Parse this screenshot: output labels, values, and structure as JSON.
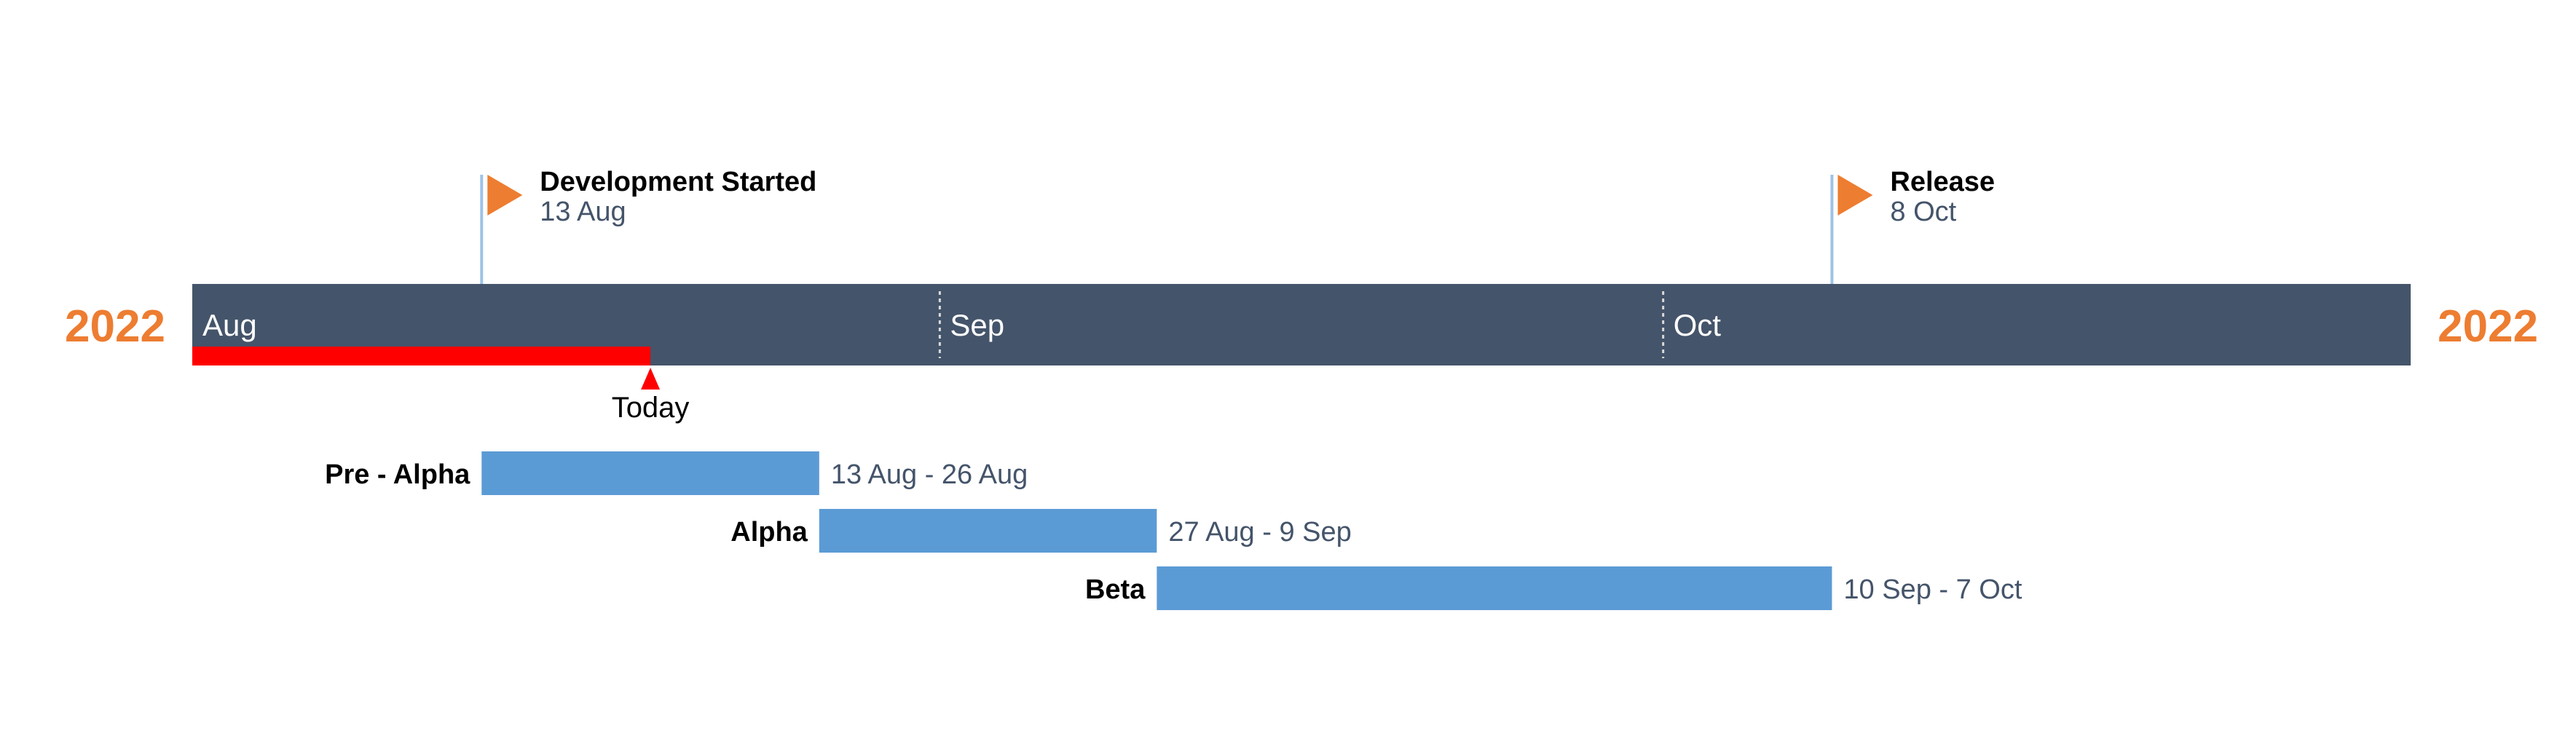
{
  "timeline": {
    "year_left": "2022",
    "year_right": "2022",
    "start_date": "2022-08-01",
    "end_date": "2022-10-31",
    "months": [
      {
        "label": "Aug",
        "start": "2022-08-01"
      },
      {
        "label": "Sep",
        "start": "2022-09-01"
      },
      {
        "label": "Oct",
        "start": "2022-10-01"
      }
    ],
    "today": {
      "label": "Today",
      "date": "2022-08-20"
    },
    "milestones": [
      {
        "title": "Development Started",
        "date_label": "13 Aug",
        "date": "2022-08-13"
      },
      {
        "title": "Release",
        "date_label": "8 Oct",
        "date": "2022-10-08"
      }
    ],
    "tasks": [
      {
        "name": "Pre - Alpha",
        "range_label": "13 Aug - 26 Aug",
        "start": "2022-08-13",
        "end": "2022-08-26"
      },
      {
        "name": "Alpha",
        "range_label": "27 Aug - 9 Sep",
        "start": "2022-08-27",
        "end": "2022-09-09"
      },
      {
        "name": "Beta",
        "range_label": "10 Sep - 7 Oct",
        "start": "2022-09-10",
        "end": "2022-10-07"
      }
    ],
    "colors": {
      "year": "#ed7d31",
      "band": "#44546a",
      "today": "#ff0000",
      "milestone_flag": "#ed7d31",
      "milestone_line": "#9dc3e6",
      "task_bar": "#5b9bd5",
      "month_divider": "#d9d9d9"
    }
  }
}
